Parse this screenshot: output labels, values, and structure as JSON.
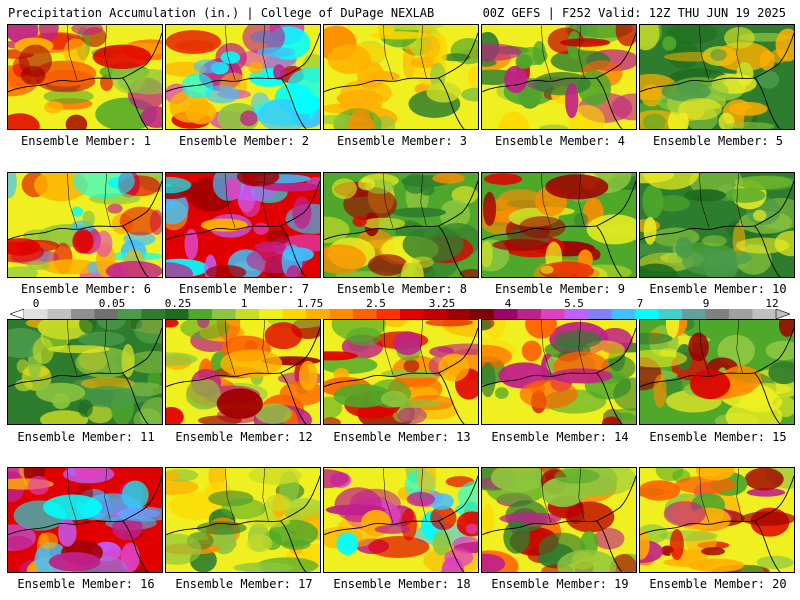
{
  "header": {
    "title": "Precipitation Accumulation (in.) | College of DuPage NEXLAB",
    "valid": "00Z GEFS | F252 Valid: 12Z THU JUN 19 2025"
  },
  "legend": {
    "tick_labels": [
      "0",
      "0.05",
      "0.25",
      "1",
      "1.75",
      "2.5",
      "3.25",
      "4",
      "5.5",
      "7",
      "9",
      "12"
    ],
    "colors": [
      "#e0e0e0",
      "#c0c0c0",
      "#909090",
      "#707070",
      "#4a9a4a",
      "#2e7d2e",
      "#1e6b1e",
      "#4fa82a",
      "#8cc63f",
      "#c8dc28",
      "#f0f020",
      "#ffd700",
      "#ffb000",
      "#ff8c00",
      "#ff6000",
      "#ff3000",
      "#e00000",
      "#c00000",
      "#a00000",
      "#800000",
      "#a0006a",
      "#c0208a",
      "#e040c0",
      "#c060ff",
      "#8080ff",
      "#40c0ff",
      "#00ffff",
      "#40d0d0",
      "#60a0a0",
      "#808080",
      "#a0a0a0",
      "#c0c0c0"
    ]
  },
  "members": [
    {
      "label": "Ensemble Member: 1",
      "scheme": "hot"
    },
    {
      "label": "Ensemble Member: 2",
      "scheme": "hot-cyan"
    },
    {
      "label": "Ensemble Member: 3",
      "scheme": "yellow-green"
    },
    {
      "label": "Ensemble Member: 4",
      "scheme": "mixed"
    },
    {
      "label": "Ensemble Member: 5",
      "scheme": "green"
    },
    {
      "label": "Ensemble Member: 6",
      "scheme": "hot-cyan"
    },
    {
      "label": "Ensemble Member: 7",
      "scheme": "magenta-cyan"
    },
    {
      "label": "Ensemble Member: 8",
      "scheme": "green-hot"
    },
    {
      "label": "Ensemble Member: 9",
      "scheme": "green-hot"
    },
    {
      "label": "Ensemble Member: 10",
      "scheme": "green"
    },
    {
      "label": "Ensemble Member: 11",
      "scheme": "green"
    },
    {
      "label": "Ensemble Member: 12",
      "scheme": "hot"
    },
    {
      "label": "Ensemble Member: 13",
      "scheme": "hot"
    },
    {
      "label": "Ensemble Member: 14",
      "scheme": "mixed"
    },
    {
      "label": "Ensemble Member: 15",
      "scheme": "green-hot"
    },
    {
      "label": "Ensemble Member: 16",
      "scheme": "magenta-cyan"
    },
    {
      "label": "Ensemble Member: 17",
      "scheme": "yellow-green"
    },
    {
      "label": "Ensemble Member: 18",
      "scheme": "hot-cyan"
    },
    {
      "label": "Ensemble Member: 19",
      "scheme": "mixed"
    },
    {
      "label": "Ensemble Member: 20",
      "scheme": "hot"
    }
  ]
}
